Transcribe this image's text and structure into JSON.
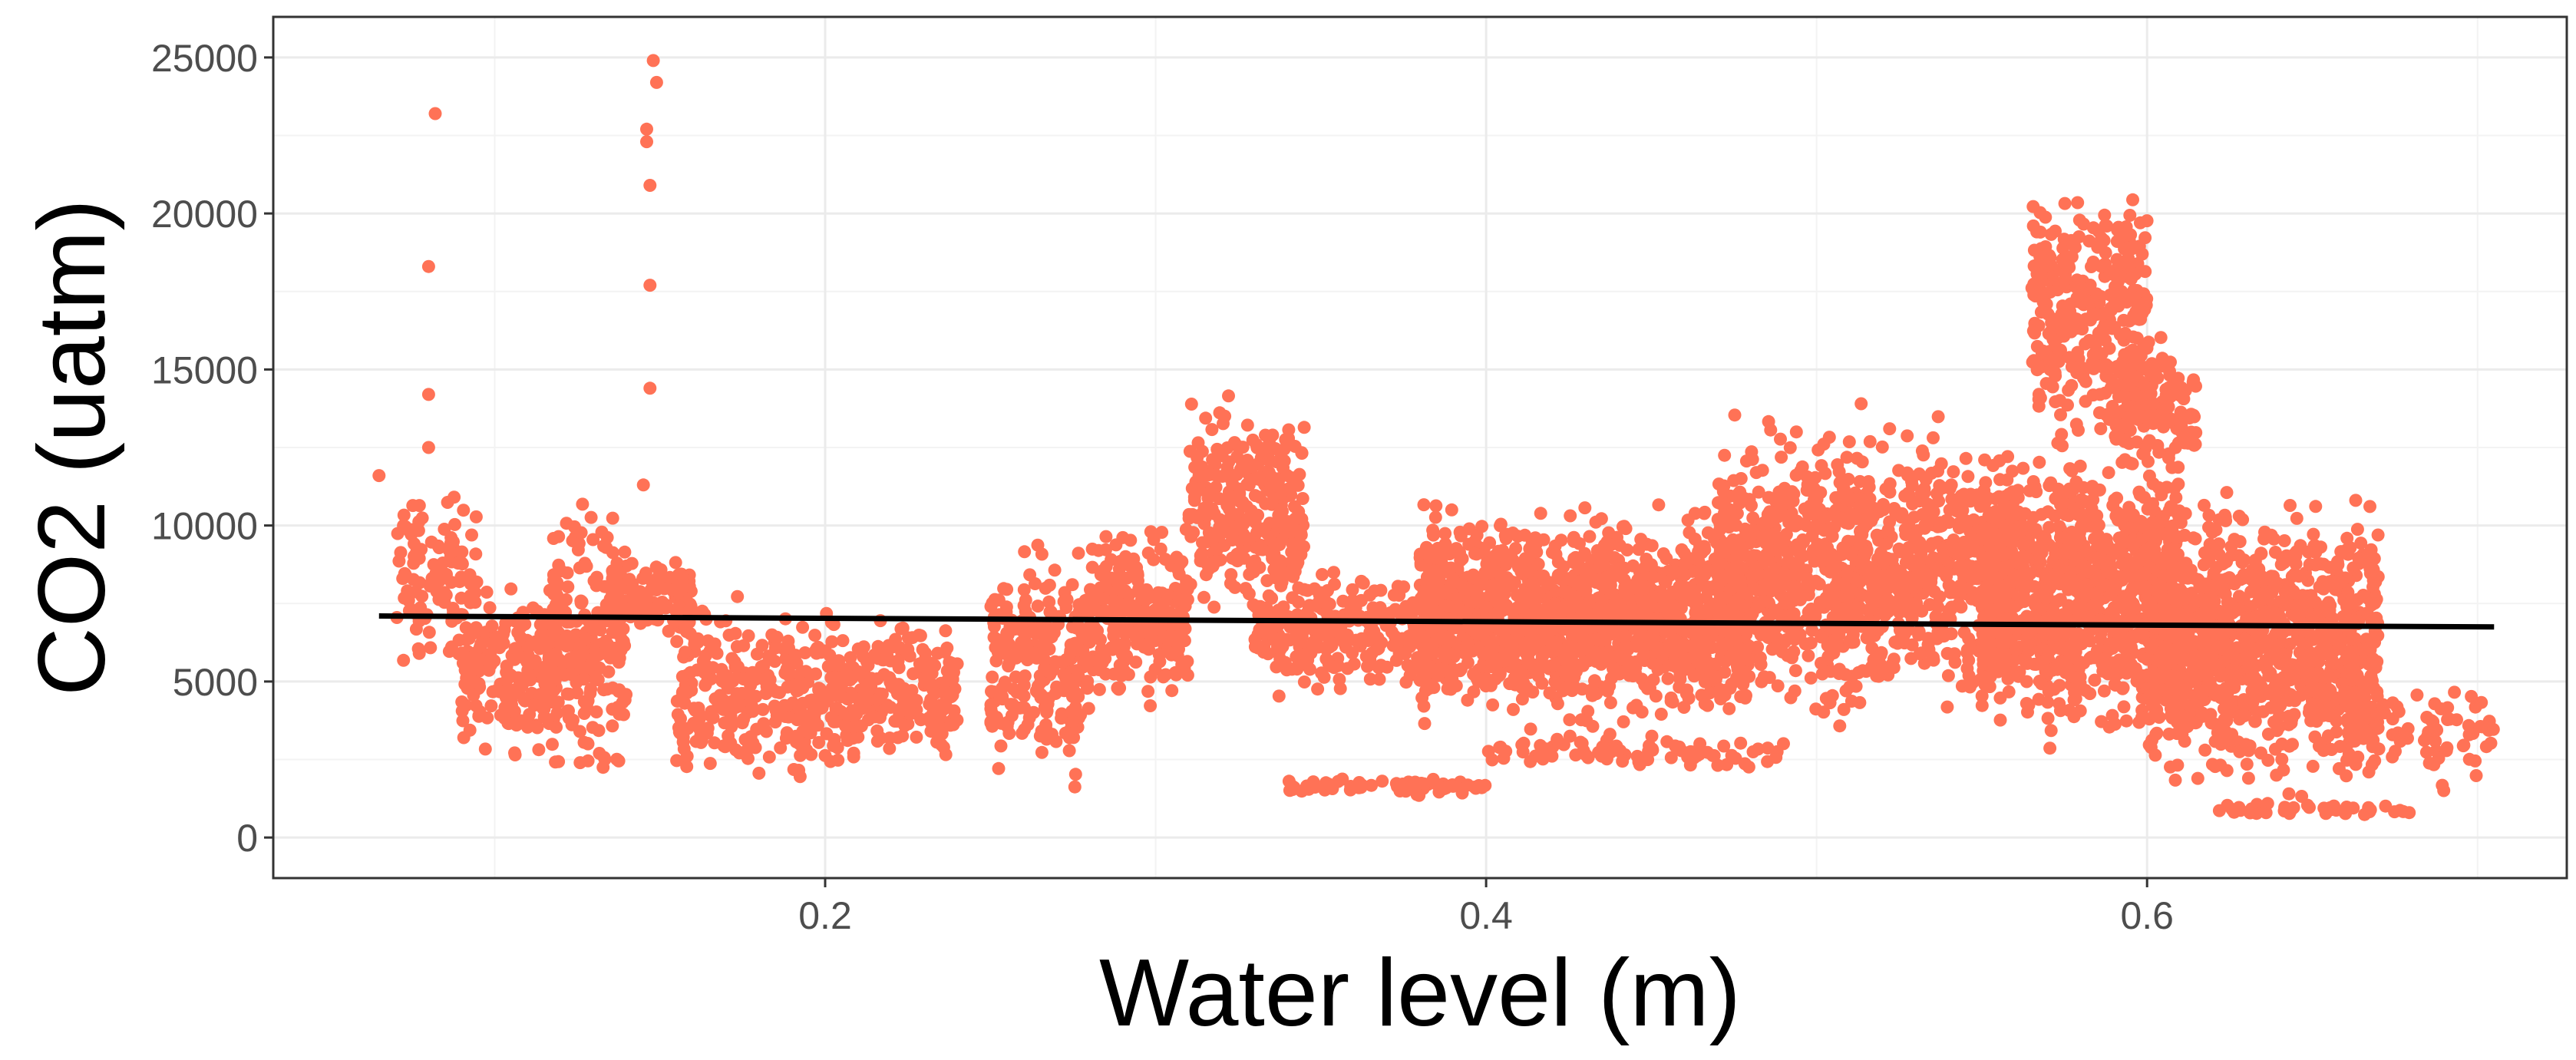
{
  "chart_data": {
    "type": "scatter",
    "xlabel": "Water level (m)",
    "ylabel": "CO2 (uatm)",
    "xlim": [
      0.033,
      0.727
    ],
    "ylim": [
      -1300,
      26300
    ],
    "x_ticks": [
      0.2,
      0.4,
      0.6
    ],
    "x_tick_labels": [
      "0.2",
      "0.4",
      "0.6"
    ],
    "y_ticks": [
      0,
      5000,
      10000,
      15000,
      20000,
      25000
    ],
    "y_tick_labels": [
      "0",
      "5000",
      "10000",
      "15000",
      "20000",
      "25000"
    ],
    "grid": true,
    "legend": "none",
    "point_color": "#ff7256",
    "trend_color": "#000000",
    "trend_line": {
      "x": [
        0.065,
        0.705
      ],
      "y": [
        7100,
        6750
      ]
    },
    "outliers": [
      [
        0.065,
        11600
      ],
      [
        0.082,
        23200
      ],
      [
        0.08,
        18300
      ],
      [
        0.08,
        14200
      ],
      [
        0.08,
        12500
      ],
      [
        0.148,
        24900
      ],
      [
        0.149,
        24200
      ],
      [
        0.146,
        22700
      ],
      [
        0.146,
        22300
      ],
      [
        0.147,
        20900
      ],
      [
        0.147,
        17700
      ],
      [
        0.147,
        14400
      ],
      [
        0.145,
        11300
      ]
    ],
    "series": [
      {
        "x_range": [
          0.07,
          0.095
        ],
        "y_range": [
          4800,
          11800
        ],
        "count": 120
      },
      {
        "x_range": [
          0.09,
          0.12
        ],
        "y_range": [
          2200,
          8600
        ],
        "count": 220
      },
      {
        "x_range": [
          0.115,
          0.14
        ],
        "y_range": [
          1000,
          11400
        ],
        "count": 220
      },
      {
        "x_range": [
          0.135,
          0.16
        ],
        "y_range": [
          6000,
          9200
        ],
        "count": 120
      },
      {
        "x_range": [
          0.155,
          0.19
        ],
        "y_range": [
          900,
          8200
        ],
        "count": 200
      },
      {
        "x_range": [
          0.19,
          0.21
        ],
        "y_range": [
          1000,
          7700
        ],
        "count": 140
      },
      {
        "x_range": [
          0.21,
          0.24
        ],
        "y_range": [
          1800,
          7800
        ],
        "count": 180
      },
      {
        "x_range": [
          0.25,
          0.28
        ],
        "y_range": [
          1000,
          10300
        ],
        "count": 240
      },
      {
        "x_range": [
          0.28,
          0.31
        ],
        "y_range": [
          3800,
          10500
        ],
        "count": 240
      },
      {
        "x_range": [
          0.31,
          0.345
        ],
        "y_range": [
          6500,
          14700
        ],
        "count": 280
      },
      {
        "x_range": [
          0.33,
          0.39
        ],
        "y_range": [
          4000,
          9200
        ],
        "count": 300
      },
      {
        "x_range": [
          0.34,
          0.4
        ],
        "y_range": [
          1300,
          2000
        ],
        "count": 60
      },
      {
        "x_range": [
          0.38,
          0.48
        ],
        "y_range": [
          3000,
          11200
        ],
        "count": 1400
      },
      {
        "x_range": [
          0.4,
          0.49
        ],
        "y_range": [
          2000,
          3500
        ],
        "count": 80
      },
      {
        "x_range": [
          0.47,
          0.56
        ],
        "y_range": [
          3000,
          14100
        ],
        "count": 1100
      },
      {
        "x_range": [
          0.55,
          0.61
        ],
        "y_range": [
          2500,
          13200
        ],
        "count": 1000
      },
      {
        "x_range": [
          0.565,
          0.6
        ],
        "y_range": [
          12000,
          21800
        ],
        "count": 320
      },
      {
        "x_range": [
          0.59,
          0.615
        ],
        "y_range": [
          11000,
          16500
        ],
        "count": 150
      },
      {
        "x_range": [
          0.6,
          0.67
        ],
        "y_range": [
          700,
          11800
        ],
        "count": 1100
      },
      {
        "x_range": [
          0.62,
          0.68
        ],
        "y_range": [
          600,
          1200
        ],
        "count": 40
      },
      {
        "x_range": [
          0.66,
          0.705
        ],
        "y_range": [
          1200,
          5500
        ],
        "count": 80
      }
    ]
  }
}
